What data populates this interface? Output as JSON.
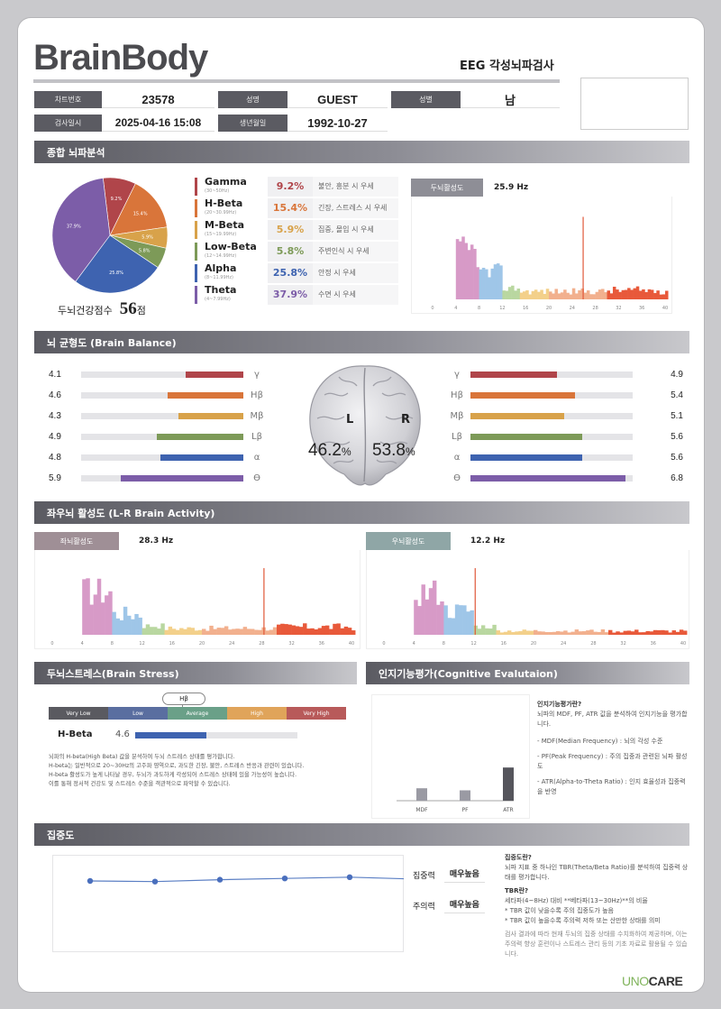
{
  "header": {
    "logo": "BrainBody",
    "exam_title": "EEG 각성뇌파검사"
  },
  "info": {
    "chart_no_label": "차트번호",
    "chart_no": "23578",
    "name_label": "성명",
    "name": "GUEST",
    "sex_label": "성별",
    "sex": "남",
    "date_label": "검사일시",
    "date": "2025-04-16 15:08",
    "birth_label": "생년월일",
    "birth": "1992-10-27"
  },
  "sections": {
    "overall": "종합 뇌파분석",
    "balance": "뇌 균형도 (Brain Balance)",
    "lr": "좌우뇌 활성도 (L-R Brain Activity)",
    "stress": "두뇌스트레스(Brain Stress)",
    "cognitive": "인지기능평가(Cognitive Evalutaion)",
    "focus": "집중도"
  },
  "score": {
    "label": "두뇌건강점수",
    "value": "56",
    "unit": "점"
  },
  "pie_labels": [
    "9.2%",
    "15.4%",
    "5.9%",
    "5.8%",
    "25.8%",
    "37.9%"
  ],
  "waves": [
    {
      "name": "Gamma",
      "range": "(30~50Hz)",
      "pct": "9.2%",
      "desc": "불안, 흥분 시 우세",
      "color": "#b0454a"
    },
    {
      "name": "H-Beta",
      "range": "(20~30.99Hz)",
      "pct": "15.4%",
      "desc": "긴장, 스트레스 시 우세",
      "color": "#d9753a"
    },
    {
      "name": "M-Beta",
      "range": "(15~19.99Hz)",
      "pct": "5.9%",
      "desc": "집중, 몰입 시 우세",
      "color": "#d8a24a"
    },
    {
      "name": "Low-Beta",
      "range": "(12~14.99Hz)",
      "pct": "5.8%",
      "desc": "주변인식 시 우세",
      "color": "#7d9a58"
    },
    {
      "name": "Alpha",
      "range": "(8~11.99Hz)",
      "pct": "25.8%",
      "desc": "안정 시 우세",
      "color": "#3e63b0"
    },
    {
      "name": "Theta",
      "range": "(4~7.99Hz)",
      "pct": "37.9%",
      "desc": "수면 시 우세",
      "color": "#7c5da8"
    }
  ],
  "dominant": {
    "label": "두뇌활성도",
    "value": "25.9 Hz"
  },
  "balance": {
    "left_pct": "46.2",
    "right_pct": "53.8",
    "pct_sign": "%",
    "left_label": "L",
    "right_label": "R",
    "greek": [
      "γ",
      "Hβ",
      "Mβ",
      "Lβ",
      "α",
      "ϴ"
    ],
    "left_values": [
      "4.1",
      "4.6",
      "4.3",
      "4.9",
      "4.8",
      "5.9"
    ],
    "right_values": [
      "4.9",
      "5.4",
      "5.1",
      "5.6",
      "5.6",
      "6.8"
    ]
  },
  "lr": {
    "left_label": "좌뇌활성도",
    "left_value": "28.3 Hz",
    "right_label": "우뇌활성도",
    "right_value": "12.2 Hz"
  },
  "stress": {
    "marker": "Hβ",
    "levels": [
      "Very Low",
      "Low",
      "Average",
      "High",
      "Very High"
    ],
    "level_colors": [
      "#5a5a60",
      "#5a6ea0",
      "#6aa088",
      "#e0a45a",
      "#b85a5a"
    ],
    "metric": "H-Beta",
    "value": "4.6",
    "fill": 0.44,
    "desc": [
      "뇌파의 H-beta(High Beta) 값을 분석하여 두뇌 스트레스 상태를 평가합니다.",
      "H-beta는 일반적으로 20~30Hz의 고주파 영역으로, 과도한 긴장, 불안, 스트레스 반응과 관련이 있습니다.",
      "H-beta 활성도가 높게 나타날 경우, 두뇌가 과도하게 각성되어 스트레스 상태에 있을 가능성이 높습니다.",
      "이를 통해 정서적 건강도 및 스트레스 수준을 객관적으로 파악할 수 있습니다."
    ]
  },
  "cognitive": {
    "bars": [
      "MDF",
      "PF",
      "ATR"
    ],
    "values": [
      0.3,
      0.25,
      0.8
    ],
    "title": "인지기능평가란?",
    "intro": "뇌파의 MDF, PF, ATR 값을 분석하여 인지기능을 평가합니다.",
    "items": [
      "- MDF(Median Frequency) : 뇌의 각성 수준",
      "- PF(Peak Frequency) : 주의 집중과 관련된 뇌파 활성도",
      "- ATR(Alpha-to-Theta Ratio) : 인지 효율성과 집중력을 반영"
    ]
  },
  "focus": {
    "points": [
      0.5,
      0.45,
      0.6,
      0.7,
      0.8,
      0.65
    ],
    "rows": [
      {
        "label": "집중력",
        "value": "매우높음"
      },
      {
        "label": "주의력",
        "value": "매우높음"
      }
    ],
    "t1": "집중도란?",
    "p1": "뇌파 지표 중 하나인 TBR(Theta/Beta Ratio)를 분석하여 집중력 상태를 평가합니다.",
    "t2": "TBR란?",
    "p2": "세타파(4~8Hz) 대비 **베타파(13~30Hz)**의 비율",
    "b1": "* TBR 값이 낮을수록 주의 집중도가 높음",
    "b2": "* TBR 값이 높을수록 주의력 저하 또는 산만한 상태를 의미",
    "p3": "검사 결과에 따라 현재 두뇌의 집중 상태를 수치화하여 제공하며, 이는 주의력 향상 훈련이나 스트레스 관리 등의 기초 자료로 활용될 수 있습니다."
  },
  "brand": {
    "a": "UNO",
    "b": "CARE"
  }
}
